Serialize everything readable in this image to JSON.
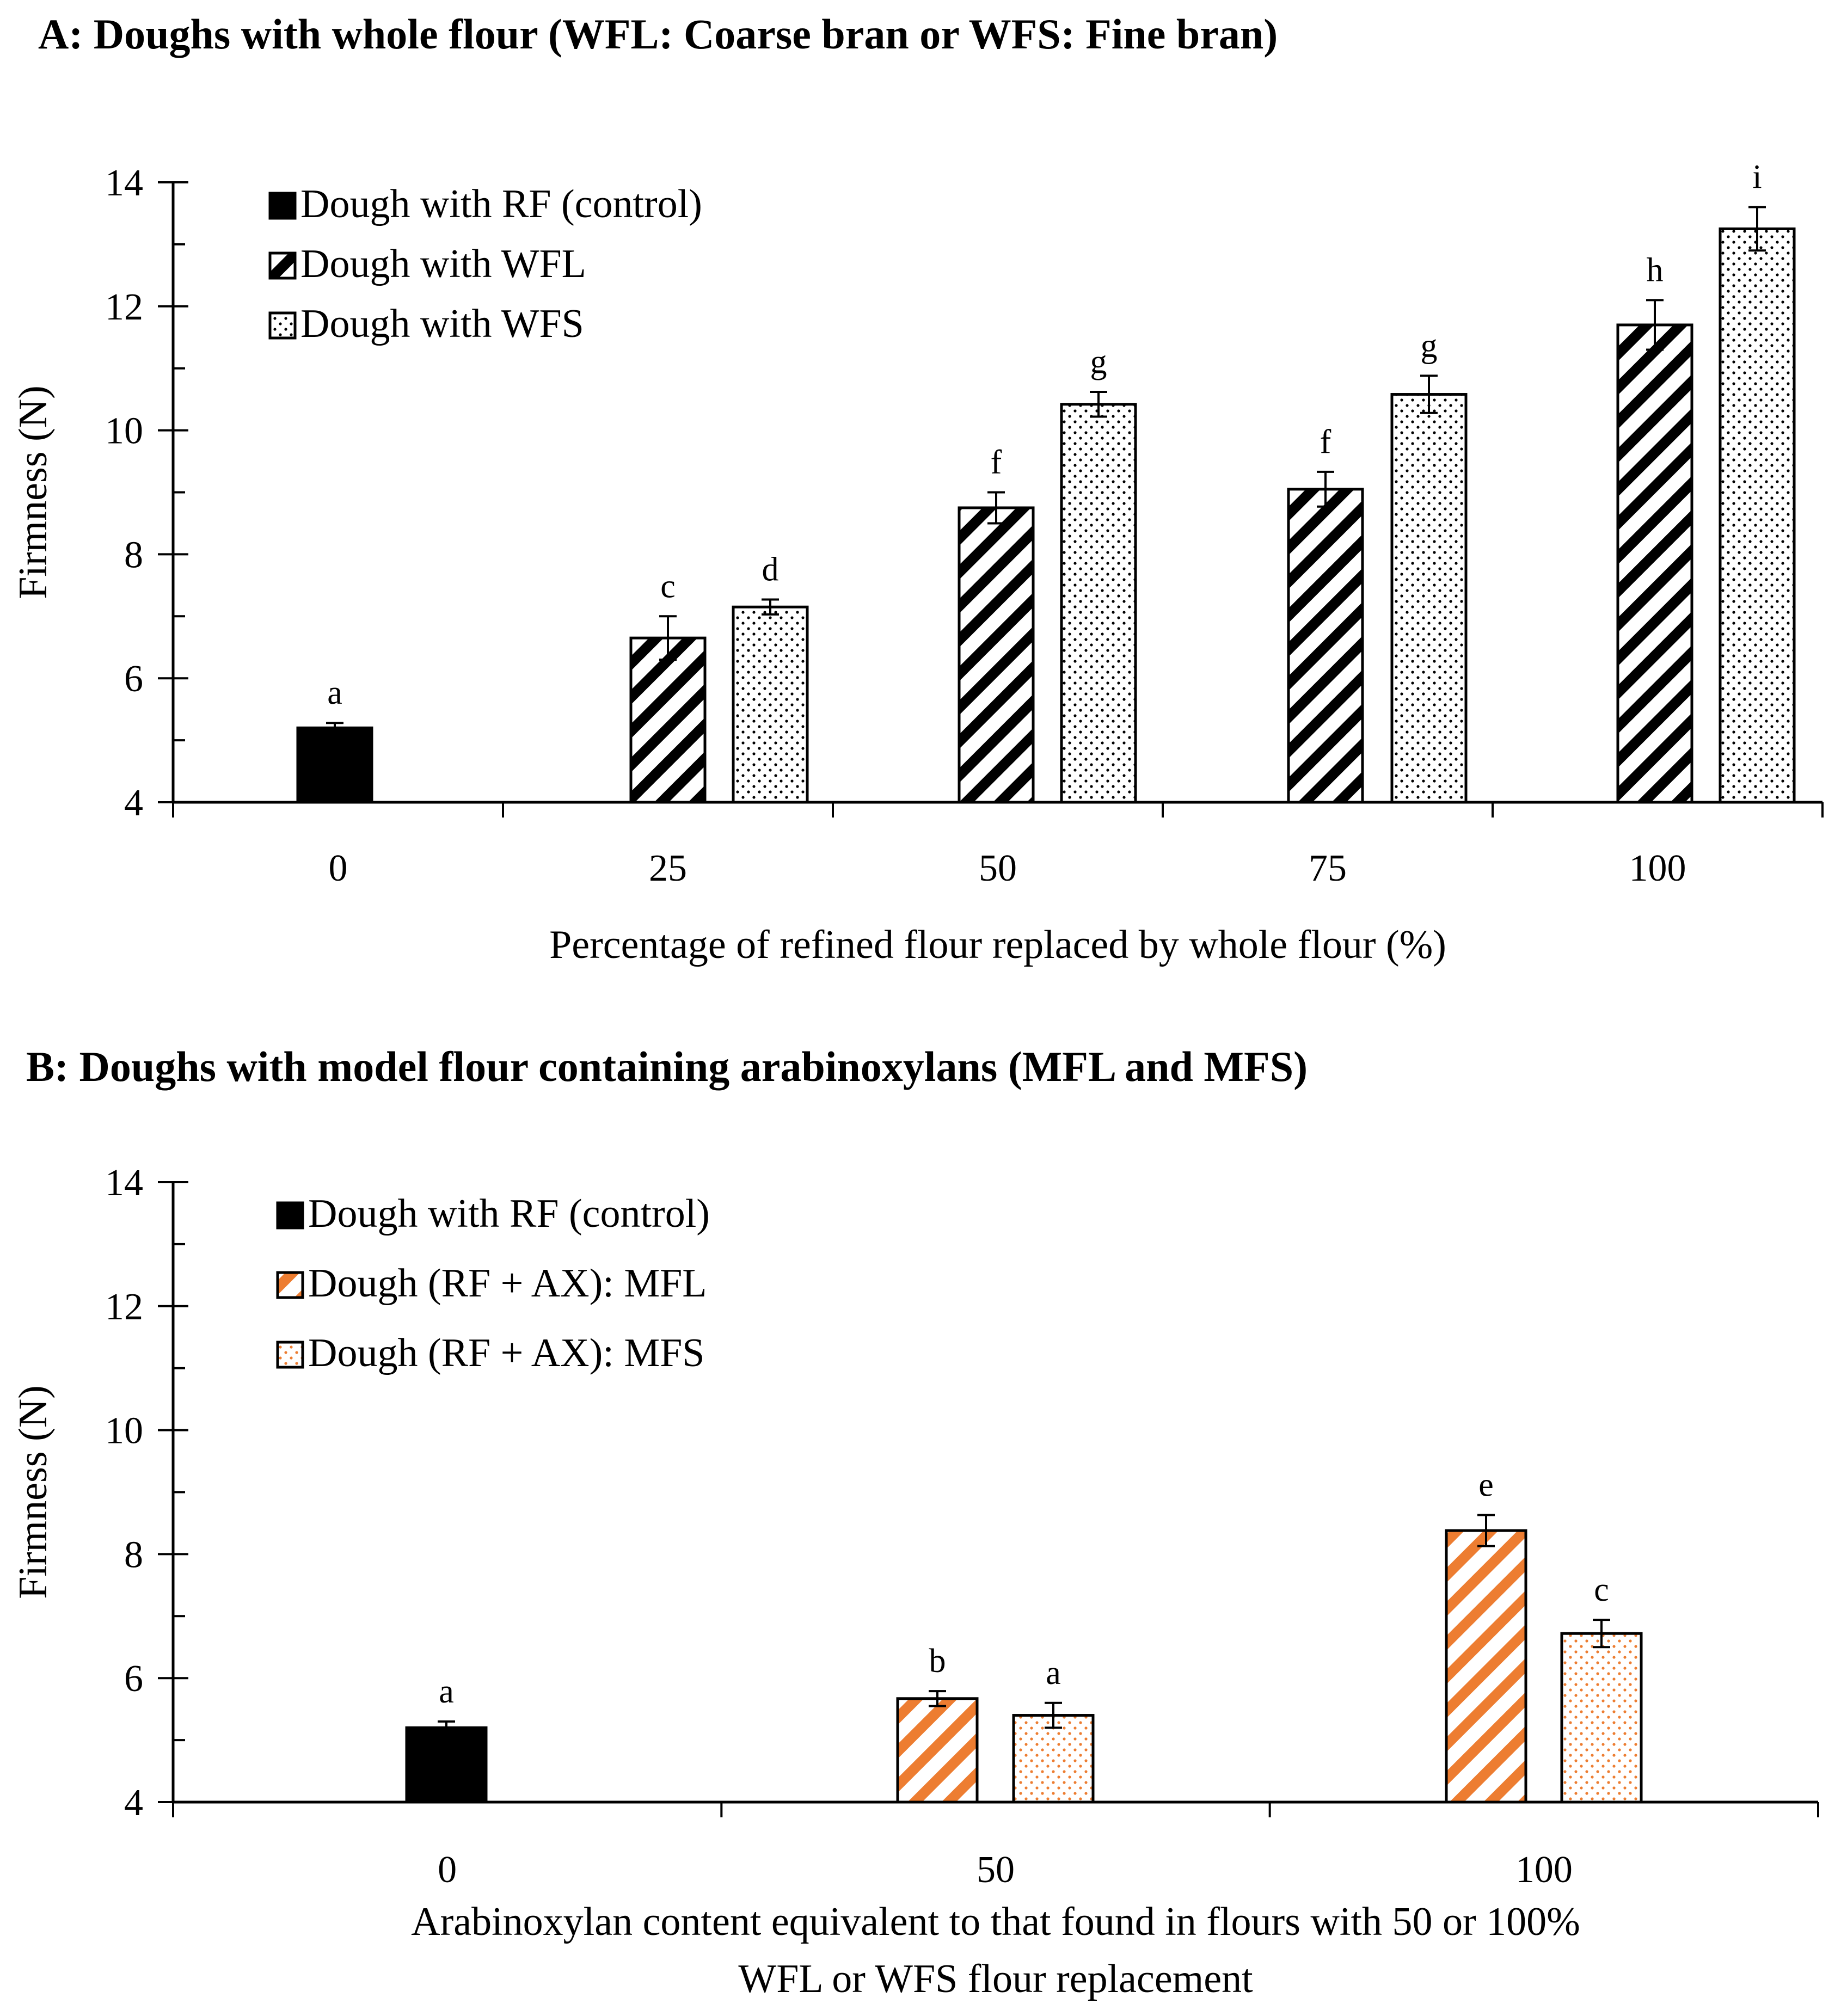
{
  "chart_data": [
    {
      "panel": "A",
      "type": "bar",
      "title": "A: Doughs with whole flour (WFL: Coarse bran or WFS: Fine bran)",
      "xlabel": "Percentage of refined flour replaced by whole flour (%)",
      "ylabel": "Firmness (N)",
      "ylim": [
        4,
        14
      ],
      "yticks": [
        "4",
        "6",
        "8",
        "10",
        "12",
        "14"
      ],
      "categories": [
        "0",
        "25",
        "50",
        "75",
        "100"
      ],
      "series": [
        {
          "name": "Dough with RF (control)",
          "style": "solid",
          "color": "#000000",
          "values": [
            5.2,
            null,
            null,
            null,
            null
          ],
          "errors": [
            0.08,
            null,
            null,
            null,
            null
          ],
          "labels": [
            "a",
            null,
            null,
            null,
            null
          ]
        },
        {
          "name": "Dough with WFL",
          "style": "hatch",
          "color": "#000000",
          "values": [
            null,
            6.65,
            8.75,
            9.05,
            11.7
          ],
          "errors": [
            null,
            0.35,
            0.25,
            0.28,
            0.4
          ],
          "labels": [
            null,
            "c",
            "f",
            "f",
            "h"
          ]
        },
        {
          "name": "Dough with WFS",
          "style": "dots",
          "color": "#000000",
          "values": [
            null,
            7.15,
            10.42,
            10.58,
            13.25
          ],
          "errors": [
            null,
            0.12,
            0.2,
            0.3,
            0.35
          ],
          "labels": [
            null,
            "d",
            "g",
            "g",
            "i"
          ]
        }
      ],
      "legend": "top-left"
    },
    {
      "panel": "B",
      "type": "bar",
      "title": "B: Doughs with model flour containing arabinoxylans (MFL and MFS)",
      "xlabel_lines": [
        "Arabinoxylan content equivalent to that found in flours with 50 or 100%",
        "WFL or WFS flour replacement"
      ],
      "ylabel": "Firmness (N)",
      "ylim": [
        4,
        14
      ],
      "yticks": [
        "4",
        "6",
        "8",
        "10",
        "12",
        "14"
      ],
      "categories": [
        "0",
        "50",
        "100"
      ],
      "series": [
        {
          "name": "Dough with RF (control)",
          "style": "solid",
          "color": "#000000",
          "values": [
            5.2,
            null,
            null
          ],
          "errors": [
            0.1,
            null,
            null
          ],
          "labels": [
            "a",
            null,
            null
          ]
        },
        {
          "name": "Dough (RF + AX): MFL",
          "style": "hatch",
          "color": "#ED7D31",
          "values": [
            null,
            5.67,
            8.38
          ],
          "errors": [
            null,
            0.12,
            0.25
          ],
          "labels": [
            null,
            "b",
            "e"
          ]
        },
        {
          "name": "Dough (RF + AX): MFS",
          "style": "dots",
          "color": "#ED7D31",
          "values": [
            null,
            5.4,
            6.72
          ],
          "errors": [
            null,
            0.2,
            0.22
          ],
          "labels": [
            null,
            "a",
            "c"
          ]
        }
      ],
      "legend": "top-left"
    }
  ]
}
